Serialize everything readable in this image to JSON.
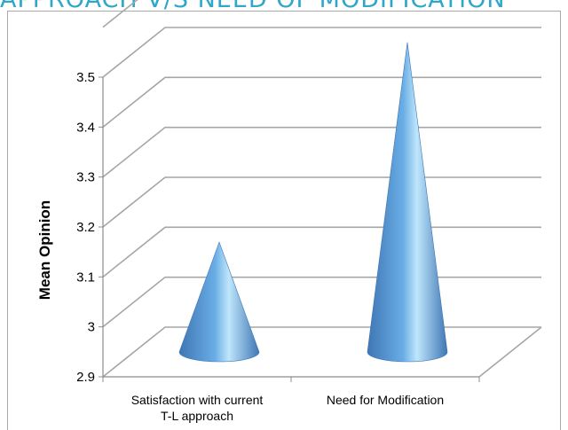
{
  "page": {
    "title": "APPROACH V/S NEED OF MODIFICATION"
  },
  "chart_data": {
    "type": "bar",
    "style": "3d-cone",
    "title": "",
    "xlabel": "",
    "ylabel": "Mean Opinion",
    "ylim": [
      2.9,
      3.5
    ],
    "yticks": [
      2.9,
      3.0,
      3.1,
      3.2,
      3.3,
      3.4,
      3.5
    ],
    "ytick_labels": [
      "2.9",
      "3",
      "3.1",
      "3.2",
      "3.3",
      "3.4",
      "3.5"
    ],
    "categories": [
      [
        "Satisfaction with current",
        "T-L approach"
      ],
      [
        "Need for Modification"
      ]
    ],
    "values": [
      3.12,
      3.52
    ],
    "grid": true,
    "legend": "none",
    "colors": {
      "cone_dark": "#3f76b4",
      "cone_mid": "#6aaee6",
      "cone_light": "#bfe6fb",
      "grid": "#a6a6a6",
      "title": "#2ea7c9"
    }
  }
}
